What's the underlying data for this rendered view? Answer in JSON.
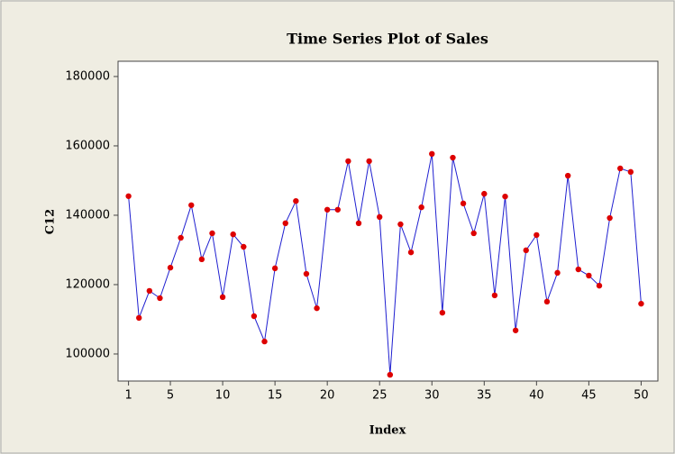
{
  "chart_data": {
    "type": "line",
    "title": "Time Series Plot of Sales",
    "x_label": "Index",
    "y_label": "C12",
    "x": [
      1,
      2,
      3,
      4,
      5,
      6,
      7,
      8,
      9,
      10,
      11,
      12,
      13,
      14,
      15,
      16,
      17,
      18,
      19,
      20,
      21,
      22,
      23,
      24,
      25,
      26,
      27,
      28,
      29,
      30,
      31,
      32,
      33,
      34,
      35,
      36,
      37,
      38,
      39,
      40,
      41,
      42,
      43,
      44,
      45,
      46,
      47,
      48,
      49,
      50
    ],
    "series": [
      {
        "name": "C12",
        "color": "#1f1fd0",
        "marker_color": "#dd0000",
        "values": [
          145500,
          110400,
          118200,
          116100,
          124900,
          133500,
          142900,
          127300,
          134800,
          116400,
          134500,
          130900,
          110900,
          103600,
          124700,
          137700,
          144100,
          123100,
          113200,
          141600,
          141600,
          155600,
          137700,
          155600,
          139500,
          94000,
          137400,
          129300,
          142300,
          157700,
          111900,
          156600,
          143400,
          134800,
          146200,
          116900,
          145400,
          106800,
          129900,
          134300,
          115100,
          123400,
          151400,
          124400,
          122600,
          119700,
          139200,
          153500,
          152500,
          114500
        ]
      }
    ],
    "xlim": [
      0,
      51.6
    ],
    "xticks": [
      1,
      5,
      10,
      15,
      20,
      25,
      30,
      35,
      40,
      45,
      50
    ],
    "ylim": [
      92200,
      184400
    ],
    "yticks": [
      100000,
      120000,
      140000,
      160000,
      180000
    ]
  }
}
